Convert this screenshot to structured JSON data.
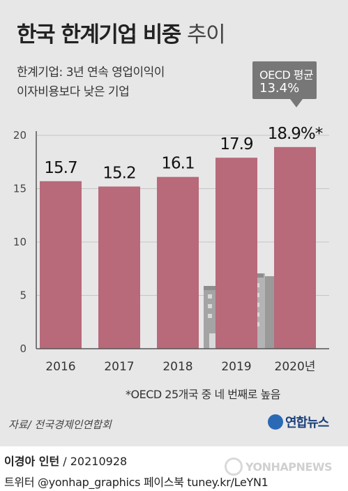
{
  "title_main": "한국 한계기업 비중",
  "title_light": "추이",
  "subtitle": {
    "line1": "한계기업: 3년 연속 영업이익이",
    "line2": "이자비용보다 낮은 기업"
  },
  "callout": {
    "label": "OECD 평균",
    "value": "13.4%"
  },
  "footnote": "*OECD 25개국 중 네 번째로 높음",
  "source": "자료/ 전국경제인연합회",
  "logo_text": "연합뉴스",
  "credit": {
    "author": "이경아 인턴",
    "date": " / 20210928"
  },
  "handles": "트위터 @yonhap_graphics  페이스북 tuney.kr/LeYN1",
  "watermark_text": "YONHAPNEWS",
  "colors": {
    "bar": "#b8697a",
    "grid": "#c4c4c4",
    "axis": "#555555",
    "building": "#a9a9a9"
  },
  "chart_data": {
    "type": "bar",
    "categories": [
      "2016",
      "2017",
      "2018",
      "2019",
      "2020년"
    ],
    "values": [
      15.7,
      15.2,
      16.1,
      17.9,
      18.9
    ],
    "value_labels": [
      "15.7",
      "15.2",
      "16.1",
      "17.9",
      "18.9%*"
    ],
    "yticks": [
      0,
      5,
      10,
      15,
      20
    ],
    "ylim": [
      0,
      20
    ],
    "grid": true,
    "title": "한국 한계기업 비중 추이",
    "xlabel": "",
    "ylabel": ""
  }
}
